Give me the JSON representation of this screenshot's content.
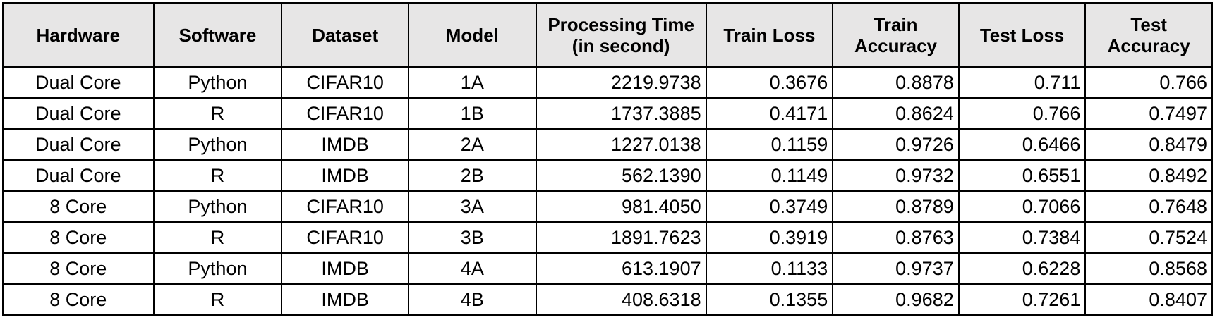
{
  "table": {
    "headers": [
      "Hardware",
      "Software",
      "Dataset",
      "Model",
      "Processing Time (in second)",
      "Train Loss",
      "Train Accuracy",
      "Test Loss",
      "Test Accuracy"
    ],
    "rows": [
      [
        "Dual Core",
        "Python",
        "CIFAR10",
        "1A",
        "2219.9738",
        "0.3676",
        "0.8878",
        "0.711",
        "0.766"
      ],
      [
        "Dual Core",
        "R",
        "CIFAR10",
        "1B",
        "1737.3885",
        "0.4171",
        "0.8624",
        "0.766",
        "0.7497"
      ],
      [
        "Dual Core",
        "Python",
        "IMDB",
        "2A",
        "1227.0138",
        "0.1159",
        "0.9726",
        "0.6466",
        "0.8479"
      ],
      [
        "Dual Core",
        "R",
        "IMDB",
        "2B",
        "562.1390",
        "0.1149",
        "0.9732",
        "0.6551",
        "0.8492"
      ],
      [
        "8 Core",
        "Python",
        "CIFAR10",
        "3A",
        "981.4050",
        "0.3749",
        "0.8789",
        "0.7066",
        "0.7648"
      ],
      [
        "8 Core",
        "R",
        "CIFAR10",
        "3B",
        "1891.7623",
        "0.3919",
        "0.8763",
        "0.7384",
        "0.7524"
      ],
      [
        "8 Core",
        "Python",
        "IMDB",
        "4A",
        "613.1907",
        "0.1133",
        "0.9737",
        "0.6228",
        "0.8568"
      ],
      [
        "8 Core",
        "R",
        "IMDB",
        "4B",
        "408.6318",
        "0.1355",
        "0.9682",
        "0.7261",
        "0.8407"
      ]
    ]
  }
}
